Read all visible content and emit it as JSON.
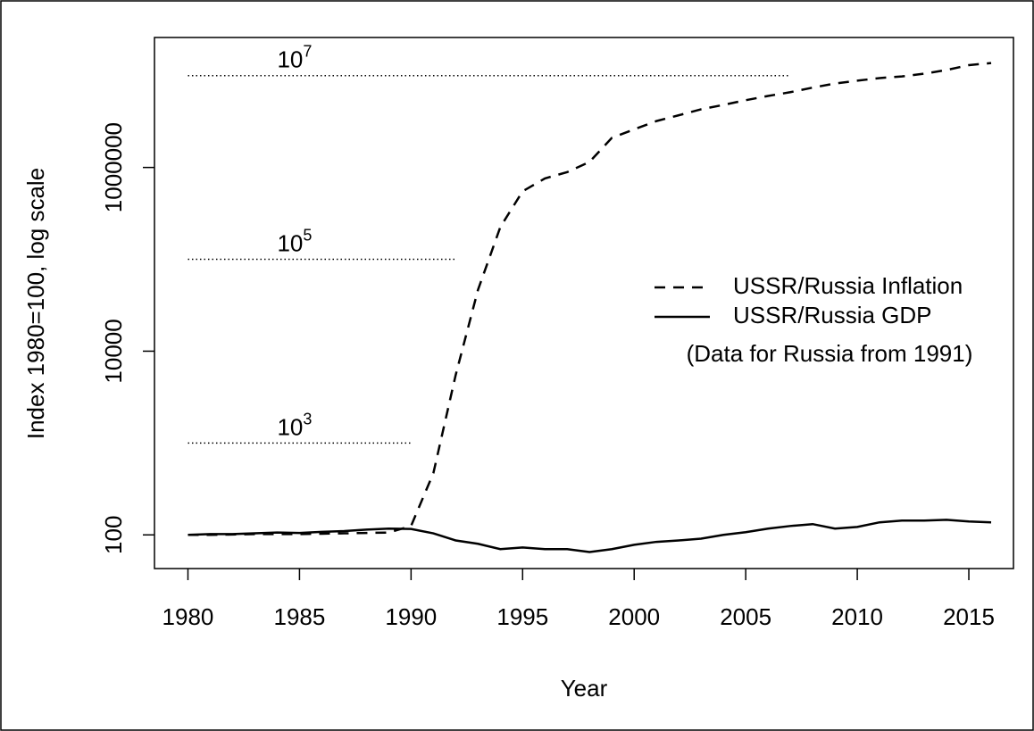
{
  "chart_data": {
    "type": "line",
    "xlabel": "Year",
    "ylabel": "Index 1980=100, log scale",
    "x": [
      1980,
      1981,
      1982,
      1983,
      1984,
      1985,
      1986,
      1987,
      1988,
      1989,
      1990,
      1991,
      1992,
      1993,
      1994,
      1995,
      1996,
      1997,
      1998,
      1999,
      2000,
      2001,
      2002,
      2003,
      2004,
      2005,
      2006,
      2007,
      2008,
      2009,
      2010,
      2011,
      2012,
      2013,
      2014,
      2015,
      2016
    ],
    "series": [
      {
        "name": "USSR/Russia Inflation",
        "color": "#000000",
        "line_style": "dashed",
        "values": [
          100,
          100,
          101,
          102,
          102,
          102,
          103,
          104,
          105,
          106,
          125,
          470,
          5500,
          46500,
          224000,
          550000,
          760000,
          890000,
          1150000,
          2100000,
          2600000,
          3200000,
          3700000,
          4300000,
          4800000,
          5400000,
          6000000,
          6600000,
          7400000,
          8200000,
          8800000,
          9400000,
          9800000,
          10500000,
          11500000,
          13000000,
          13700000
        ]
      },
      {
        "name": "USSR/Russia GDP",
        "color": "#000000",
        "line_style": "solid",
        "values": [
          100,
          102,
          102,
          104,
          106,
          105,
          108,
          110,
          114,
          117,
          116,
          104,
          87,
          80,
          70,
          73,
          70,
          70,
          65,
          70,
          78,
          84,
          87,
          91,
          100,
          107,
          117,
          125,
          131,
          117,
          122,
          137,
          143,
          143,
          146,
          140,
          137
        ]
      }
    ],
    "legend_note": "(Data for Russia from 1991)",
    "legend_position": "right",
    "reference_lines": [
      {
        "label_base": "10",
        "label_exponent": "7",
        "value": 10000000,
        "x": [
          1980,
          2007
        ]
      },
      {
        "label_base": "10",
        "label_exponent": "5",
        "value": 100000,
        "x": [
          1980,
          1992
        ]
      },
      {
        "label_base": "10",
        "label_exponent": "3",
        "value": 1000,
        "x": [
          1980,
          1990
        ]
      }
    ],
    "log_y": true,
    "xlim": [
      1978.5,
      2017.0
    ],
    "ylim": [
      43,
      26000000
    ],
    "xticks": [
      1980,
      1985,
      1990,
      1995,
      2000,
      2005,
      2010,
      2015
    ],
    "yticks": [
      100,
      10000,
      1000000
    ]
  }
}
